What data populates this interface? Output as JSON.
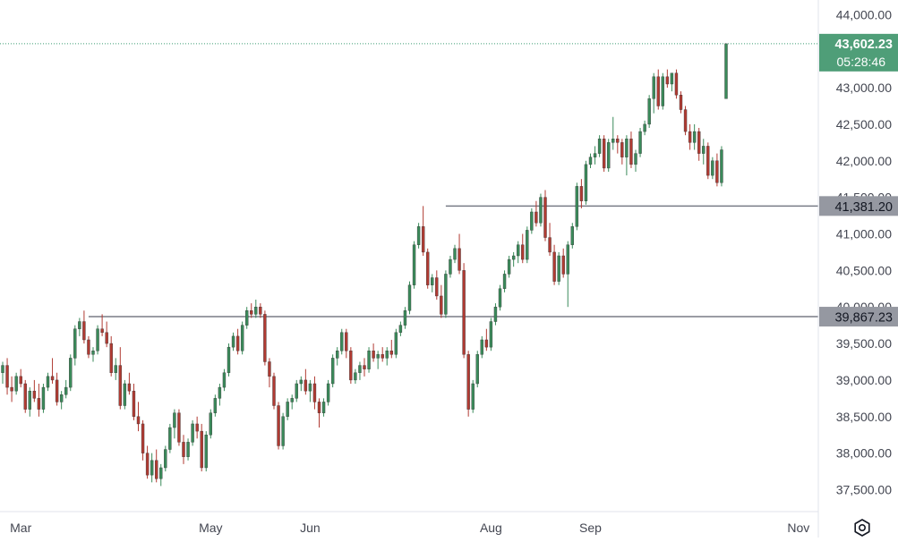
{
  "chart_data": {
    "type": "candlestick",
    "price_axis": {
      "ticks": [
        "37,500.00",
        "38,000.00",
        "38,500.00",
        "39,000.00",
        "39,500.00",
        "40,000.00",
        "40,500.00",
        "41,000.00",
        "41,500.00",
        "42,000.00",
        "42,500.00",
        "43,000.00",
        "44,000.00"
      ],
      "tick_values": [
        37500,
        38000,
        38500,
        39000,
        39500,
        40000,
        40500,
        41000,
        41500,
        42000,
        42500,
        43000,
        44000
      ],
      "ylim": [
        37200,
        44200
      ]
    },
    "time_axis": {
      "labels": [
        "Mar",
        "May",
        "Jun",
        "Aug",
        "Sep",
        "Nov"
      ],
      "label_bar_index": [
        4,
        46,
        68,
        108,
        130,
        176
      ]
    },
    "horizontal_lines": [
      {
        "value": 41381.2,
        "label": "41,381.20",
        "start_bar": 98,
        "color": "#9598a1"
      },
      {
        "value": 39867.23,
        "label": "39,867.23",
        "start_bar": 19,
        "color": "#9598a1"
      }
    ],
    "last_price": {
      "value": 43602.23,
      "label": "43,602.23",
      "countdown": "05:28:46",
      "color": "#3c9c74"
    },
    "colors": {
      "up": "#3a8a5a",
      "down": "#b03a32",
      "axis_text": "#434651",
      "line_label_bg": "#9598a1",
      "line_label_text": "#131722"
    },
    "candles": [
      [
        39100,
        39250,
        38950,
        39200
      ],
      [
        39200,
        39300,
        38800,
        38900
      ],
      [
        38900,
        39050,
        38700,
        38850
      ],
      [
        38850,
        39100,
        38800,
        39050
      ],
      [
        39050,
        39150,
        38900,
        38950
      ],
      [
        38950,
        39000,
        38550,
        38600
      ],
      [
        38600,
        38900,
        38500,
        38850
      ],
      [
        38850,
        39000,
        38700,
        38750
      ],
      [
        38750,
        38950,
        38500,
        38600
      ],
      [
        38600,
        38950,
        38550,
        38900
      ],
      [
        38900,
        39100,
        38850,
        39050
      ],
      [
        39050,
        39300,
        38950,
        39000
      ],
      [
        39000,
        39100,
        38650,
        38700
      ],
      [
        38700,
        38850,
        38600,
        38800
      ],
      [
        38800,
        39000,
        38750,
        38900
      ],
      [
        38900,
        39350,
        38850,
        39300
      ],
      [
        39300,
        39750,
        39200,
        39700
      ],
      [
        39700,
        39850,
        39600,
        39800
      ],
      [
        39800,
        39950,
        39500,
        39550
      ],
      [
        39550,
        39600,
        39300,
        39350
      ],
      [
        39350,
        39450,
        39250,
        39400
      ],
      [
        39400,
        39750,
        39350,
        39700
      ],
      [
        39700,
        39900,
        39600,
        39650
      ],
      [
        39650,
        39800,
        39450,
        39500
      ],
      [
        39500,
        39600,
        39050,
        39100
      ],
      [
        39100,
        39300,
        39000,
        39200
      ],
      [
        39200,
        39450,
        38600,
        38650
      ],
      [
        38650,
        39000,
        38600,
        38950
      ],
      [
        38950,
        39100,
        38800,
        38850
      ],
      [
        38850,
        38950,
        38450,
        38500
      ],
      [
        38500,
        38700,
        38300,
        38400
      ],
      [
        38400,
        38450,
        37900,
        38000
      ],
      [
        38000,
        38100,
        37650,
        37700
      ],
      [
        37700,
        38000,
        37600,
        37900
      ],
      [
        37900,
        38050,
        37600,
        37650
      ],
      [
        37650,
        37850,
        37550,
        37800
      ],
      [
        37800,
        38100,
        37750,
        38050
      ],
      [
        38050,
        38400,
        38000,
        38350
      ],
      [
        38350,
        38600,
        38200,
        38550
      ],
      [
        38550,
        38600,
        38100,
        38150
      ],
      [
        38150,
        38250,
        37850,
        37950
      ],
      [
        37950,
        38200,
        37900,
        38150
      ],
      [
        38150,
        38450,
        38100,
        38400
      ],
      [
        38400,
        38500,
        38200,
        38300
      ],
      [
        38300,
        38400,
        37750,
        37800
      ],
      [
        37800,
        38300,
        37750,
        38250
      ],
      [
        38250,
        38600,
        38200,
        38550
      ],
      [
        38550,
        38800,
        38500,
        38750
      ],
      [
        38750,
        38950,
        38650,
        38900
      ],
      [
        38900,
        39150,
        38850,
        39100
      ],
      [
        39100,
        39500,
        39050,
        39450
      ],
      [
        39450,
        39650,
        39400,
        39600
      ],
      [
        39600,
        39700,
        39350,
        39400
      ],
      [
        39400,
        39800,
        39350,
        39750
      ],
      [
        39750,
        40000,
        39700,
        39950
      ],
      [
        39950,
        40050,
        39850,
        39900
      ],
      [
        39900,
        40100,
        39850,
        40000
      ],
      [
        40000,
        40050,
        39850,
        39900
      ],
      [
        39900,
        39950,
        39200,
        39250
      ],
      [
        39250,
        39300,
        38900,
        39050
      ],
      [
        39050,
        39100,
        38600,
        38650
      ],
      [
        38650,
        38700,
        38050,
        38100
      ],
      [
        38100,
        38550,
        38050,
        38500
      ],
      [
        38500,
        38750,
        38450,
        38700
      ],
      [
        38700,
        38800,
        38600,
        38750
      ],
      [
        38750,
        39000,
        38700,
        38950
      ],
      [
        38950,
        39050,
        38850,
        39000
      ],
      [
        39000,
        39150,
        38800,
        38850
      ],
      [
        38850,
        39000,
        38700,
        38950
      ],
      [
        38950,
        39050,
        38600,
        38700
      ],
      [
        38700,
        38750,
        38350,
        38550
      ],
      [
        38550,
        38750,
        38500,
        38700
      ],
      [
        38700,
        39000,
        38650,
        38950
      ],
      [
        38950,
        39350,
        38900,
        39300
      ],
      [
        39300,
        39450,
        39200,
        39400
      ],
      [
        39400,
        39700,
        39350,
        39650
      ],
      [
        39650,
        39700,
        39300,
        39400
      ],
      [
        39400,
        39450,
        38950,
        39000
      ],
      [
        39000,
        39150,
        38950,
        39100
      ],
      [
        39100,
        39250,
        39000,
        39200
      ],
      [
        39200,
        39300,
        39050,
        39150
      ],
      [
        39150,
        39450,
        39100,
        39400
      ],
      [
        39400,
        39500,
        39250,
        39300
      ],
      [
        39300,
        39400,
        39150,
        39350
      ],
      [
        39350,
        39450,
        39250,
        39300
      ],
      [
        39300,
        39450,
        39200,
        39400
      ],
      [
        39400,
        39550,
        39300,
        39350
      ],
      [
        39350,
        39700,
        39300,
        39650
      ],
      [
        39650,
        39800,
        39600,
        39750
      ],
      [
        39750,
        40000,
        39700,
        39950
      ],
      [
        39950,
        40350,
        39900,
        40300
      ],
      [
        40300,
        40900,
        40250,
        40850
      ],
      [
        40850,
        41150,
        40800,
        41100
      ],
      [
        41100,
        41381,
        40700,
        40750
      ],
      [
        40750,
        40800,
        40250,
        40300
      ],
      [
        40300,
        40450,
        40200,
        40400
      ],
      [
        40400,
        40500,
        40100,
        40150
      ],
      [
        40150,
        40300,
        39850,
        39900
      ],
      [
        39900,
        40500,
        39850,
        40450
      ],
      [
        40450,
        40700,
        40400,
        40650
      ],
      [
        40650,
        40850,
        40600,
        40800
      ],
      [
        40800,
        41000,
        40450,
        40500
      ],
      [
        40500,
        40600,
        39300,
        39350
      ],
      [
        39350,
        39400,
        38500,
        38600
      ],
      [
        38600,
        39000,
        38550,
        38950
      ],
      [
        38950,
        39400,
        38900,
        39350
      ],
      [
        39350,
        39600,
        39300,
        39550
      ],
      [
        39550,
        39700,
        39400,
        39450
      ],
      [
        39450,
        39850,
        39400,
        39800
      ],
      [
        39800,
        40050,
        39750,
        40000
      ],
      [
        40000,
        40300,
        39950,
        40250
      ],
      [
        40250,
        40500,
        40200,
        40450
      ],
      [
        40450,
        40700,
        40400,
        40650
      ],
      [
        40650,
        40750,
        40550,
        40700
      ],
      [
        40700,
        40900,
        40600,
        40850
      ],
      [
        40850,
        41000,
        40600,
        40650
      ],
      [
        40650,
        41100,
        40600,
        41050
      ],
      [
        41050,
        41350,
        41000,
        41300
      ],
      [
        41300,
        41450,
        41100,
        41150
      ],
      [
        41150,
        41550,
        41100,
        41500
      ],
      [
        41500,
        41600,
        40900,
        40950
      ],
      [
        40950,
        41150,
        40700,
        40750
      ],
      [
        40750,
        40850,
        40300,
        40350
      ],
      [
        40350,
        40750,
        40300,
        40700
      ],
      [
        40700,
        40800,
        40400,
        40450
      ],
      [
        40450,
        40900,
        40000,
        40850
      ],
      [
        40850,
        41150,
        40800,
        41100
      ],
      [
        41100,
        41700,
        41050,
        41650
      ],
      [
        41650,
        41750,
        41350,
        41450
      ],
      [
        41450,
        42000,
        41400,
        41950
      ],
      [
        41950,
        42100,
        41900,
        42050
      ],
      [
        42050,
        42200,
        41950,
        42100
      ],
      [
        42100,
        42350,
        42050,
        42300
      ],
      [
        42300,
        42350,
        41850,
        41900
      ],
      [
        41900,
        42300,
        41850,
        42250
      ],
      [
        42250,
        42600,
        42150,
        42300
      ],
      [
        42300,
        42350,
        42100,
        42250
      ],
      [
        42250,
        42300,
        41950,
        42050
      ],
      [
        42050,
        42350,
        41800,
        42300
      ],
      [
        42300,
        42400,
        41900,
        41950
      ],
      [
        41950,
        42150,
        41850,
        42100
      ],
      [
        42100,
        42450,
        42050,
        42400
      ],
      [
        42400,
        42550,
        42350,
        42500
      ],
      [
        42500,
        42900,
        42450,
        42850
      ],
      [
        42850,
        43200,
        42650,
        43150
      ],
      [
        43150,
        43250,
        42700,
        42750
      ],
      [
        42750,
        43200,
        42700,
        43150
      ],
      [
        43150,
        43250,
        43000,
        43050
      ],
      [
        43050,
        43200,
        42950,
        43200
      ],
      [
        43200,
        43250,
        42850,
        42900
      ],
      [
        42900,
        42950,
        42650,
        42700
      ],
      [
        42700,
        42750,
        42350,
        42400
      ],
      [
        42400,
        42500,
        42150,
        42250
      ],
      [
        42250,
        42500,
        42150,
        42400
      ],
      [
        42400,
        42450,
        42000,
        42100
      ],
      [
        42100,
        42300,
        41950,
        42200
      ],
      [
        42200,
        42250,
        41750,
        41800
      ],
      [
        41800,
        42050,
        41750,
        42000
      ],
      [
        42000,
        42100,
        41650,
        41700
      ],
      [
        41700,
        42200,
        41650,
        42150
      ],
      [
        42850,
        43602,
        42850,
        43602
      ]
    ]
  },
  "labels": {
    "price_ticks": [
      "37,500.00",
      "38,000.00",
      "38,500.00",
      "39,000.00",
      "39,500.00",
      "40,000.00",
      "40,500.00",
      "41,000.00",
      "41,500.00",
      "42,000.00",
      "42,500.00",
      "43,000.00",
      "44,000.00"
    ],
    "time_labels": [
      "Mar",
      "May",
      "Jun",
      "Aug",
      "Sep",
      "Nov"
    ],
    "last_price": "43,602.23",
    "countdown": "05:28:46",
    "line_1": "41,381.20",
    "line_2": "39,867.23"
  },
  "icons": {
    "settings": "gear-icon"
  }
}
